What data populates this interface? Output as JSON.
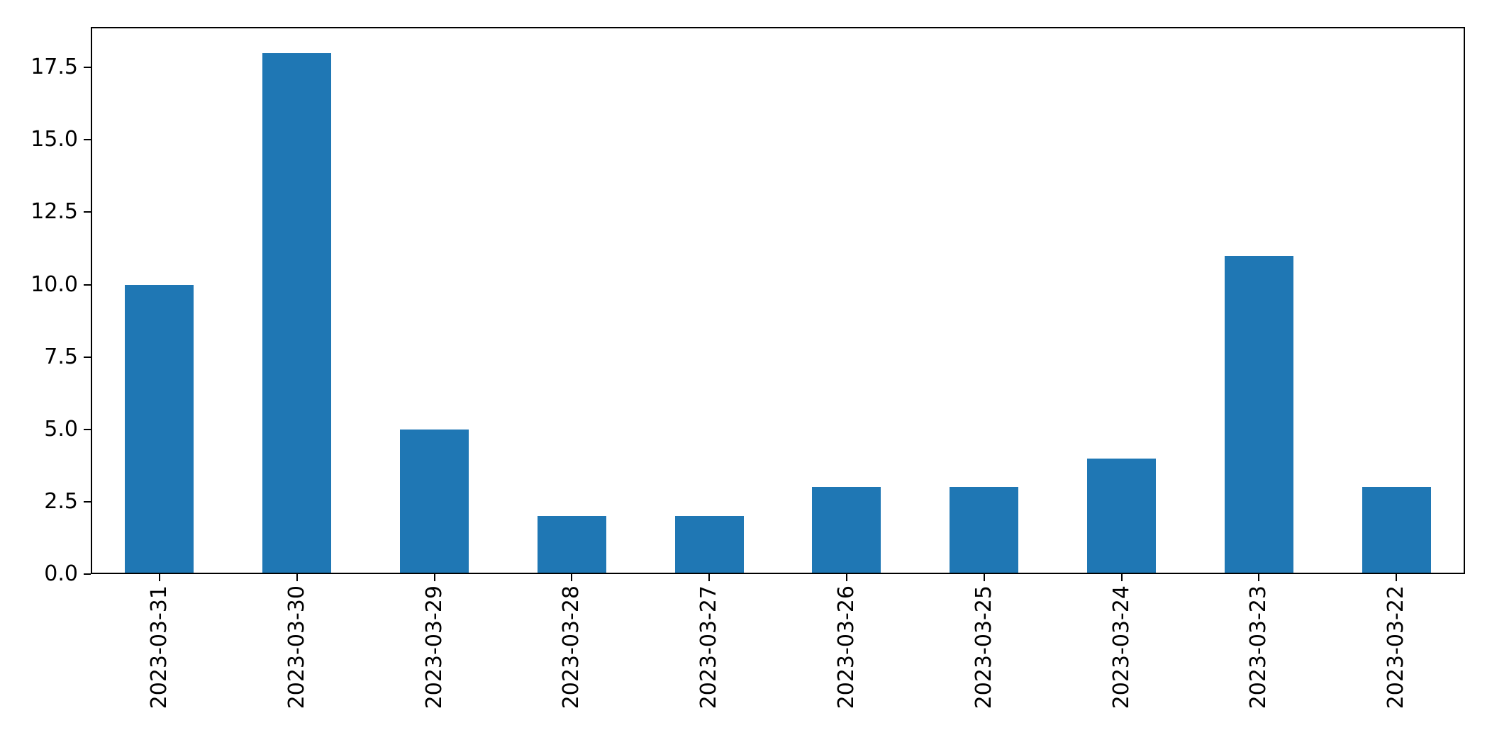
{
  "chart_data": {
    "type": "bar",
    "title": "",
    "xlabel": "",
    "ylabel": "",
    "categories": [
      "2023-03-31",
      "2023-03-30",
      "2023-03-29",
      "2023-03-28",
      "2023-03-27",
      "2023-03-26",
      "2023-03-25",
      "2023-03-24",
      "2023-03-23",
      "2023-03-22"
    ],
    "values": [
      10,
      18,
      5,
      2,
      2,
      3,
      3,
      4,
      11,
      3
    ],
    "ylim": [
      0,
      18.9
    ],
    "yticks": [
      0.0,
      2.5,
      5.0,
      7.5,
      10.0,
      12.5,
      15.0,
      17.5
    ],
    "ytick_labels": [
      "0.0",
      "2.5",
      "5.0",
      "7.5",
      "10.0",
      "12.5",
      "15.0",
      "17.5"
    ],
    "x_tick_rotation": 90,
    "bar_color": "#1f77b4",
    "axis_color": "#000000",
    "background_color": "#ffffff",
    "bar_width_fraction": 0.5,
    "grid": false,
    "legend": null
  }
}
